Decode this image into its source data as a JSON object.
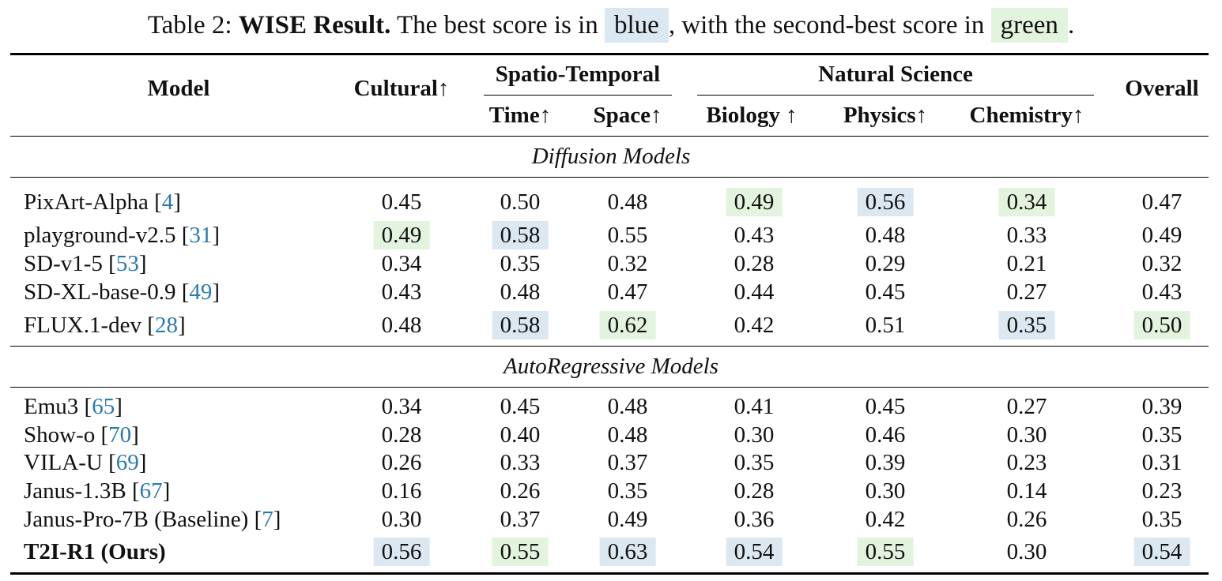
{
  "caption": {
    "prefix": "Table 2: ",
    "title": "WISE Result.",
    "text1": " The best score is in ",
    "blue_word": "blue",
    "text2": ", with the second-best score in ",
    "green_word": "green",
    "text3": "."
  },
  "headers": {
    "model": "Model",
    "cultural": "Cultural↑",
    "spatio_temporal": "Spatio-Temporal",
    "time": "Time↑",
    "space": "Space↑",
    "natural_science": "Natural Science",
    "biology": "Biology ↑",
    "physics": "Physics↑",
    "chemistry": "Chemistry↑",
    "overall": "Overall"
  },
  "sections": [
    {
      "title": "Diffusion Models",
      "rows": [
        {
          "name": "PixArt-Alpha",
          "ref": "4",
          "values": [
            "0.45",
            "0.50",
            "0.48",
            "0.49",
            "0.56",
            "0.34",
            "0.47"
          ],
          "hl": [
            "",
            "",
            "",
            "green",
            "blue",
            "green",
            ""
          ]
        },
        {
          "name": "playground-v2.5",
          "ref": "31",
          "values": [
            "0.49",
            "0.58",
            "0.55",
            "0.43",
            "0.48",
            "0.33",
            "0.49"
          ],
          "hl": [
            "green",
            "blue",
            "",
            "",
            "",
            "",
            ""
          ]
        },
        {
          "name": "SD-v1-5",
          "ref": "53",
          "values": [
            "0.34",
            "0.35",
            "0.32",
            "0.28",
            "0.29",
            "0.21",
            "0.32"
          ],
          "hl": [
            "",
            "",
            "",
            "",
            "",
            "",
            ""
          ]
        },
        {
          "name": "SD-XL-base-0.9",
          "ref": "49",
          "values": [
            "0.43",
            "0.48",
            "0.47",
            "0.44",
            "0.45",
            "0.27",
            "0.43"
          ],
          "hl": [
            "",
            "",
            "",
            "",
            "",
            "",
            ""
          ]
        },
        {
          "name": "FLUX.1-dev",
          "ref": "28",
          "values": [
            "0.48",
            "0.58",
            "0.62",
            "0.42",
            "0.51",
            "0.35",
            "0.50"
          ],
          "hl": [
            "",
            "blue",
            "green",
            "",
            "",
            "blue",
            "green"
          ]
        }
      ]
    },
    {
      "title": "AutoRegressive Models",
      "rows": [
        {
          "name": "Emu3",
          "ref": "65",
          "values": [
            "0.34",
            "0.45",
            "0.48",
            "0.41",
            "0.45",
            "0.27",
            "0.39"
          ],
          "hl": [
            "",
            "",
            "",
            "",
            "",
            "",
            ""
          ]
        },
        {
          "name": "Show-o",
          "ref": "70",
          "values": [
            "0.28",
            "0.40",
            "0.48",
            "0.30",
            "0.46",
            "0.30",
            "0.35"
          ],
          "hl": [
            "",
            "",
            "",
            "",
            "",
            "",
            ""
          ]
        },
        {
          "name": "VILA-U",
          "ref": "69",
          "values": [
            "0.26",
            "0.33",
            "0.37",
            "0.35",
            "0.39",
            "0.23",
            "0.31"
          ],
          "hl": [
            "",
            "",
            "",
            "",
            "",
            "",
            ""
          ]
        },
        {
          "name": "Janus-1.3B",
          "ref": "67",
          "values": [
            "0.16",
            "0.26",
            "0.35",
            "0.28",
            "0.30",
            "0.14",
            "0.23"
          ],
          "hl": [
            "",
            "",
            "",
            "",
            "",
            "",
            ""
          ]
        },
        {
          "name": "Janus-Pro-7B (Baseline)",
          "ref": "7",
          "values": [
            "0.30",
            "0.37",
            "0.49",
            "0.36",
            "0.42",
            "0.26",
            "0.35"
          ],
          "hl": [
            "",
            "",
            "",
            "",
            "",
            "",
            ""
          ]
        },
        {
          "name": "T2I-R1 (Ours)",
          "ref": "",
          "bold": true,
          "values": [
            "0.56",
            "0.55",
            "0.63",
            "0.54",
            "0.55",
            "0.30",
            "0.54"
          ],
          "hl": [
            "blue",
            "green",
            "blue",
            "blue",
            "green",
            "",
            "blue"
          ]
        }
      ]
    }
  ]
}
